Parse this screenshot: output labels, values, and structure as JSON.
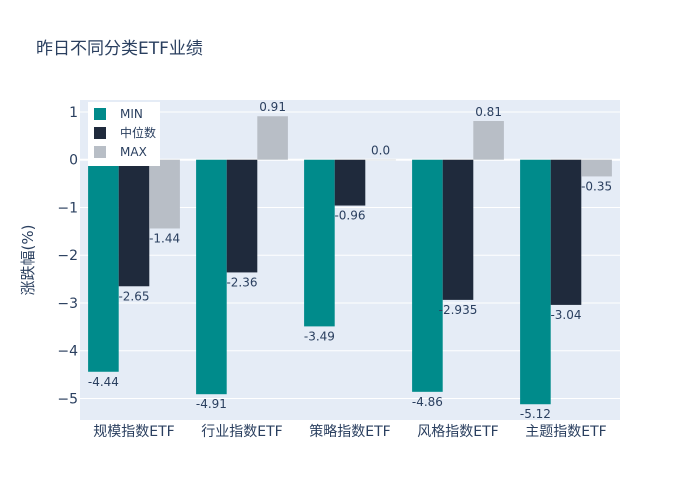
{
  "chart_data": {
    "type": "bar",
    "title": "昨日不同分类ETF业绩",
    "ylabel": "涨跌幅(%)",
    "xlabel": "",
    "categories": [
      "规模指数ETF",
      "行业指数ETF",
      "策略指数ETF",
      "风格指数ETF",
      "主题指数ETF"
    ],
    "series": [
      {
        "name": "MIN",
        "color": "#008b8b",
        "values": [
          -4.44,
          -4.91,
          -3.49,
          -4.86,
          -5.12
        ],
        "labels": [
          "-4.44",
          "-4.91",
          "-3.49",
          "-4.86",
          "-5.12"
        ]
      },
      {
        "name": "中位数",
        "color": "#1f2a3c",
        "values": [
          -2.65,
          -2.36,
          -0.96,
          -2.935,
          -3.04
        ],
        "labels": [
          "-2.65",
          "-2.36",
          "-0.96",
          "-2.935",
          "-3.04"
        ]
      },
      {
        "name": "MAX",
        "color": "#b8bec6",
        "values": [
          -1.44,
          0.91,
          0.0,
          0.81,
          -0.35
        ],
        "labels": [
          "-1.44",
          "0.91",
          "0.0",
          "0.81",
          "-0.35"
        ]
      }
    ],
    "ylim": [
      -5.45,
      1.25
    ],
    "yticks": [
      1,
      0,
      -1,
      -2,
      -3,
      -4,
      -5
    ],
    "ytick_labels": [
      "1",
      "0",
      "−1",
      "−2",
      "−3",
      "−4",
      "−5"
    ],
    "grid": true,
    "legend_position": "top-left"
  }
}
